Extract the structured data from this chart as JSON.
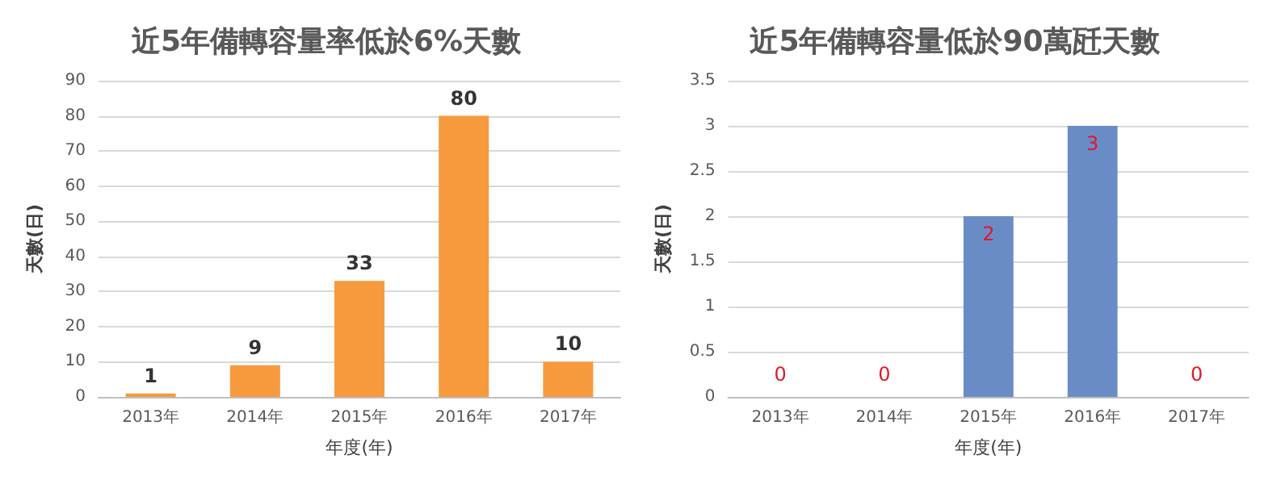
{
  "chart_data": [
    {
      "type": "bar",
      "title": "近5年備轉容量率低於6%天數",
      "xlabel": "年度(年)",
      "ylabel": "天數(日)",
      "categories": [
        "2013年",
        "2014年",
        "2015年",
        "2016年",
        "2017年"
      ],
      "values": [
        1,
        9,
        33,
        80,
        10
      ],
      "color": "#f79a3e",
      "ylim": [
        0,
        90
      ],
      "yticks": [
        0,
        10,
        20,
        30,
        40,
        50,
        60,
        70,
        80,
        90
      ],
      "grid": "y",
      "data_labels": true
    },
    {
      "type": "bar",
      "title": "近5年備轉容量低於90萬瓩天數",
      "xlabel": "年度(年)",
      "ylabel": "天數(日)",
      "categories": [
        "2013年",
        "2014年",
        "2015年",
        "2016年",
        "2017年"
      ],
      "values": [
        0,
        0,
        2,
        3,
        0
      ],
      "color": "#6a8cc6",
      "ylim": [
        0,
        3.5
      ],
      "yticks": [
        0,
        0.5,
        1,
        1.5,
        2,
        2.5,
        3,
        3.5
      ],
      "grid": "y",
      "data_labels": true
    }
  ]
}
